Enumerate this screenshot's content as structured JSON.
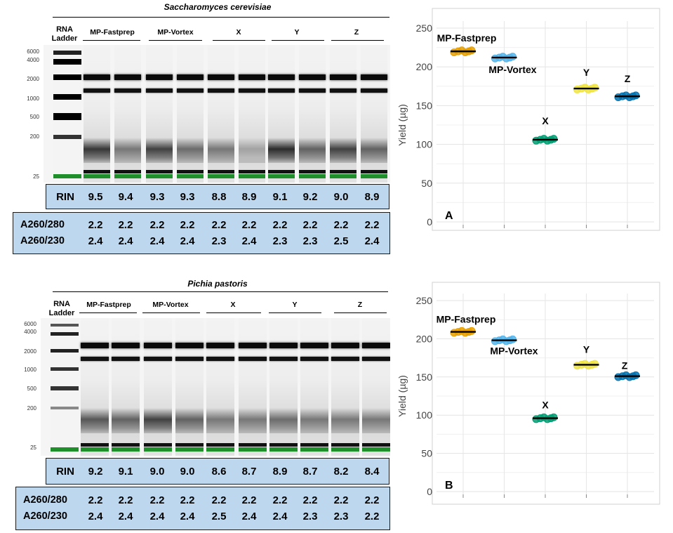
{
  "panel_top": {
    "species": "Saccharomyces cerevisiae",
    "ladder_label": [
      "RNA",
      "Ladder"
    ],
    "ladder_sizes": [
      "6000",
      "4000",
      "2000",
      "1000",
      "500",
      "200",
      "25"
    ],
    "group_labels": [
      "MP-Fastprep",
      "MP-Vortex",
      "X",
      "Y",
      "Z"
    ],
    "rin_label": "RIN",
    "rin_values": [
      "9.5",
      "9.4",
      "9.3",
      "9.3",
      "8.8",
      "8.9",
      "9.1",
      "9.2",
      "9.0",
      "8.9"
    ],
    "a280_label": "A260/280",
    "a280_values": [
      "2.2",
      "2.2",
      "2.2",
      "2.2",
      "2.2",
      "2.2",
      "2.2",
      "2.2",
      "2.2",
      "2.2"
    ],
    "a230_label": "A260/230",
    "a230_values": [
      "2.4",
      "2.4",
      "2.4",
      "2.4",
      "2.3",
      "2.4",
      "2.3",
      "2.3",
      "2.5",
      "2.4"
    ]
  },
  "panel_bottom": {
    "species": "Pichia pastoris",
    "ladder_label": [
      "RNA",
      "Ladder"
    ],
    "ladder_sizes": [
      "6000",
      "4000",
      "2000",
      "1000",
      "500",
      "200",
      "25"
    ],
    "group_labels": [
      "MP-Fastprep",
      "MP-Vortex",
      "X",
      "Y",
      "Z"
    ],
    "rin_label": "RIN",
    "rin_values": [
      "9.2",
      "9.1",
      "9.0",
      "9.0",
      "8.6",
      "8.7",
      "8.9",
      "8.7",
      "8.2",
      "8.4"
    ],
    "a280_label": "A260/280",
    "a280_values": [
      "2.2",
      "2.2",
      "2.2",
      "2.2",
      "2.2",
      "2.2",
      "2.2",
      "2.2",
      "2.2",
      "2.2"
    ],
    "a230_label": "A260/230",
    "a230_values": [
      "2.4",
      "2.4",
      "2.4",
      "2.4",
      "2.5",
      "2.4",
      "2.4",
      "2.3",
      "2.3",
      "2.2"
    ]
  },
  "chart_data": [
    {
      "type": "scatter",
      "panel_letter": "A",
      "ylabel": "Yield (µg)",
      "ylim": [
        0,
        250
      ],
      "yticks": [
        0,
        50,
        100,
        150,
        200,
        250
      ],
      "categories": [
        "MP-Fastprep",
        "MP-Vortex",
        "X",
        "Y",
        "Z"
      ],
      "means": [
        220,
        212,
        106,
        172,
        162
      ],
      "colors": [
        "#e69f00",
        "#56b4e9",
        "#009e73",
        "#f0e442",
        "#0072b2"
      ]
    },
    {
      "type": "scatter",
      "panel_letter": "B",
      "ylabel": "Yield (µg)",
      "ylim": [
        0,
        250
      ],
      "yticks": [
        0,
        50,
        100,
        150,
        200,
        250
      ],
      "categories": [
        "MP-Fastprep",
        "MP-Vortex",
        "X",
        "Y",
        "Z"
      ],
      "means": [
        209,
        198,
        96,
        166,
        151
      ],
      "colors": [
        "#e69f00",
        "#56b4e9",
        "#009e73",
        "#f0e442",
        "#0072b2"
      ]
    }
  ]
}
